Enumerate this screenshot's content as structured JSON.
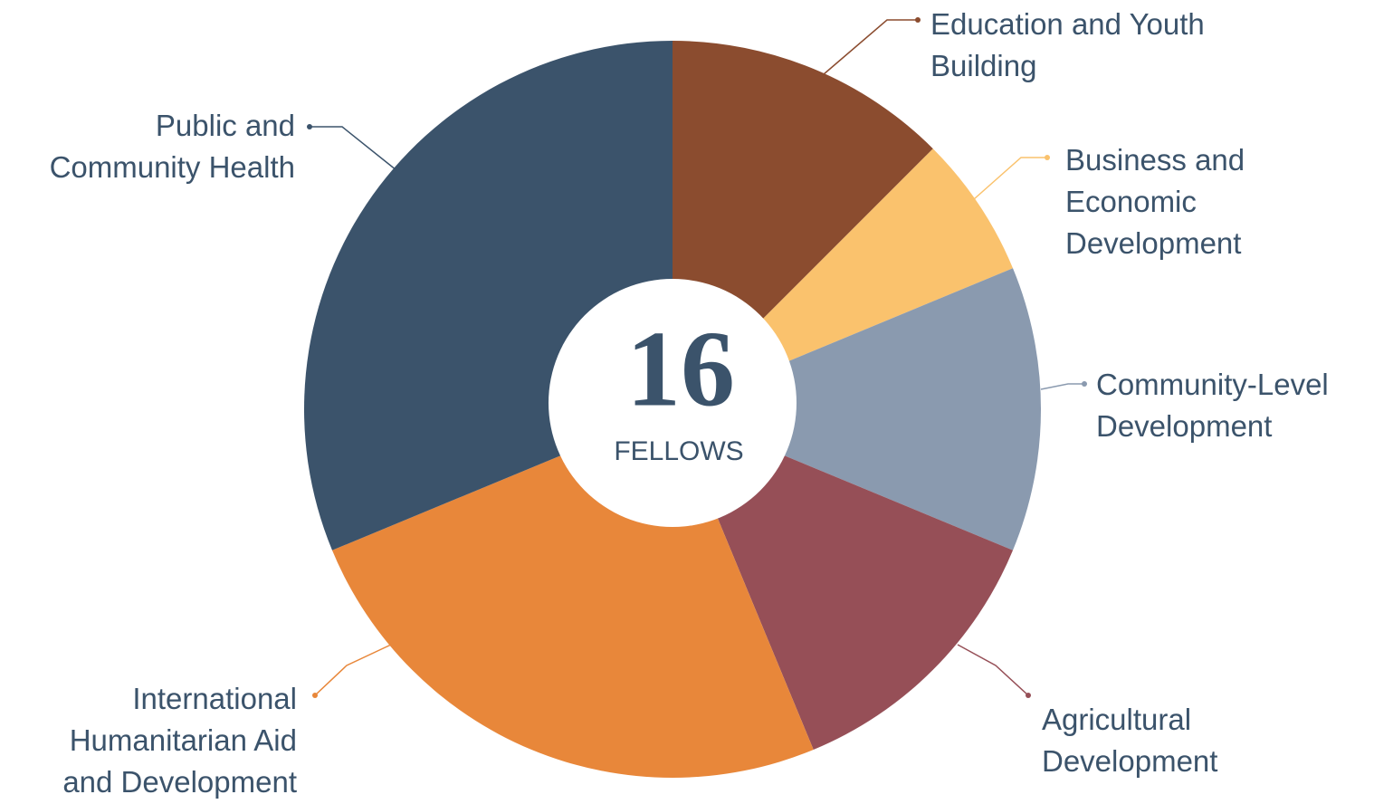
{
  "chart_data": {
    "type": "donut",
    "center_value": 16,
    "center_label": "FELLOWS",
    "categories": [
      "Education and Youth Building",
      "Business and Economic Development",
      "Community-Level Development",
      "Agricultural Development",
      "International Humanitarian Aid and Development",
      "Public and Community Health"
    ],
    "values": [
      2,
      1,
      2,
      2,
      4,
      5
    ],
    "colors": [
      "#8b4c2f",
      "#fac26d",
      "#8a9aaf",
      "#964f57",
      "#e8873a",
      "#3b536b"
    ]
  }
}
